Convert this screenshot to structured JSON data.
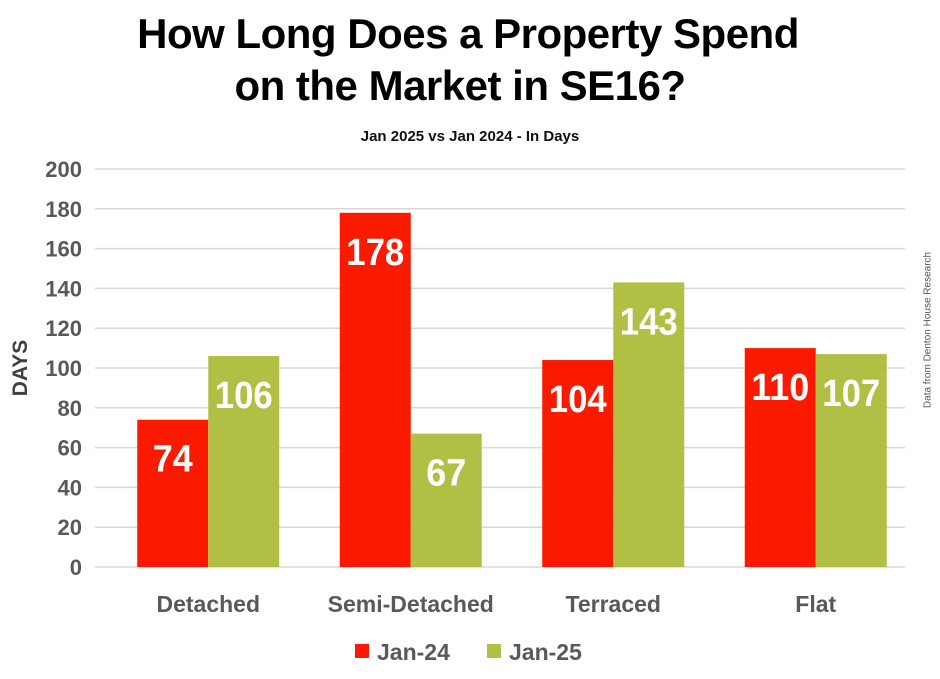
{
  "chart_data": {
    "type": "bar",
    "title_line1": "How Long Does a Property Spend",
    "title_line2": "on the Market in SE16?",
    "subtitle": "Jan 2025 vs Jan 2024 - In Days",
    "xlabel": "",
    "ylabel": "DAYS",
    "ylim": [
      0,
      200
    ],
    "yticks": [
      0,
      20,
      40,
      60,
      80,
      100,
      120,
      140,
      160,
      180,
      200
    ],
    "grid": true,
    "categories": [
      "Detached",
      "Semi-Detached",
      "Terraced",
      "Flat"
    ],
    "series": [
      {
        "name": "Jan-24",
        "color": "#F91A00",
        "values": [
          74,
          178,
          104,
          110
        ]
      },
      {
        "name": "Jan-25",
        "color": "#B2BF45",
        "values": [
          106,
          67,
          143,
          107
        ]
      }
    ],
    "legend_position": "bottom",
    "source_note": "Data from Denton House Research"
  }
}
